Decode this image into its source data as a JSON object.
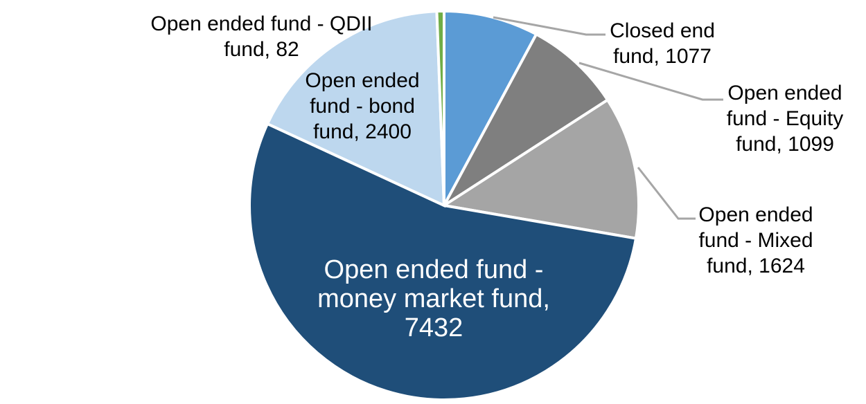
{
  "chart_data": {
    "type": "pie",
    "title": "",
    "legend_position": "none",
    "labels_style": "category name + value, outside with leader lines; largest slice labeled inside",
    "direction": "clockwise",
    "start_angle_deg": 0,
    "total": 13714,
    "separator_color": "#FFFFFF",
    "leader_line_color": "#A6A6A6",
    "slices": [
      {
        "name": "Closed end fund",
        "value": 1077,
        "color": "#5B9BD5",
        "label": "Closed end\nfund, 1077",
        "label_color": "#000000"
      },
      {
        "name": "Open ended fund - Equity fund",
        "value": 1099,
        "color": "#7F7F7F",
        "label": "Open ended\nfund - Equity\nfund, 1099",
        "label_color": "#000000"
      },
      {
        "name": "Open ended fund - Mixed fund",
        "value": 1624,
        "color": "#A5A5A5",
        "label": "Open ended\nfund - Mixed\nfund, 1624",
        "label_color": "#000000"
      },
      {
        "name": "Open ended fund - money market fund",
        "value": 7432,
        "color": "#1F4E79",
        "label": "Open ended fund -\nmoney market fund,\n7432",
        "label_color": "#FFFFFF"
      },
      {
        "name": "Open ended fund - bond fund",
        "value": 2400,
        "color": "#BDD7EE",
        "label": "Open ended\nfund - bond\nfund, 2400",
        "label_color": "#000000"
      },
      {
        "name": "Open ended fund - QDII fund",
        "value": 82,
        "color": "#70AD47",
        "label": "Open ended fund - QDII\nfund, 82",
        "label_color": "#000000"
      }
    ]
  }
}
